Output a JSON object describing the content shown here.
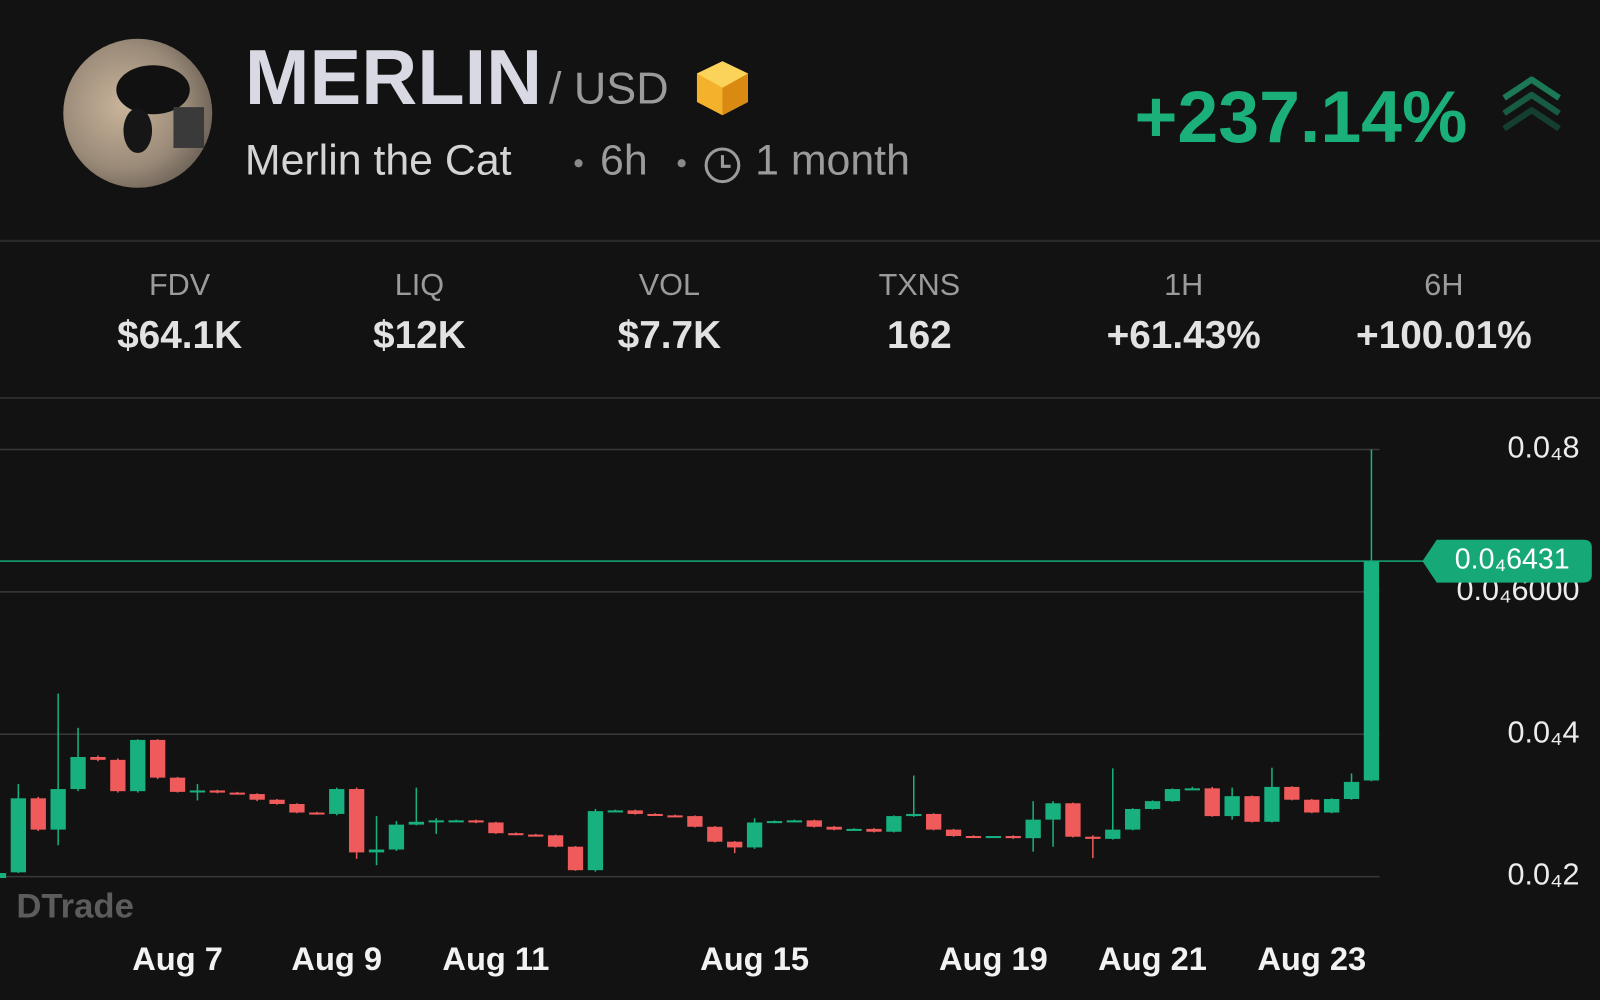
{
  "header": {
    "symbol": "MERLIN",
    "quote": "/ USD",
    "name": "Merlin the Cat",
    "interval": "6h",
    "age": "1 month",
    "change": "+237.14%"
  },
  "stats": [
    {
      "label": "FDV",
      "value": "$64.1K"
    },
    {
      "label": "LIQ",
      "value": "$12K"
    },
    {
      "label": "VOL",
      "value": "$7.7K"
    },
    {
      "label": "TXNS",
      "value": "162"
    },
    {
      "label": "1H",
      "value": "+61.43%"
    },
    {
      "label": "6H",
      "value": "+100.01%"
    }
  ],
  "chart_data": {
    "type": "candlestick",
    "watermark": "DTrade",
    "up_color": "#17b07e",
    "down_color": "#ef5a5a",
    "open": [
      1.98e-05,
      2.06e-05,
      3.1e-05,
      2.66e-05,
      3.23e-05,
      3.68e-05,
      3.64e-05,
      3.2e-05,
      3.92e-05,
      3.39e-05,
      3.19e-05,
      3.21e-05,
      3.18e-05,
      3.16e-05,
      3.08e-05,
      3.02e-05,
      2.9e-05,
      2.88e-05,
      3.23e-05,
      2.34e-05,
      2.38e-05,
      2.73e-05,
      2.77e-05,
      2.79e-05,
      2.79e-05,
      2.76e-05,
      2.61e-05,
      2.59e-05,
      2.58e-05,
      2.42e-05,
      2.09e-05,
      2.92e-05,
      2.93e-05,
      2.88e-05,
      2.86e-05,
      2.85e-05,
      2.7e-05,
      2.49e-05,
      2.41e-05,
      2.76e-05,
      2.78e-05,
      2.79e-05,
      2.7e-05,
      2.66e-05,
      2.67e-05,
      2.63e-05,
      2.85e-05,
      2.88e-05,
      2.66e-05,
      2.57e-05,
      2.56e-05,
      2.57e-05,
      2.54e-05,
      2.8e-05,
      3.03e-05,
      2.56e-05,
      2.53e-05,
      2.66e-05,
      2.95e-05,
      3.06e-05,
      3.23e-05,
      3.24e-05,
      2.85e-05,
      3.13e-05,
      2.77e-05,
      3.26e-05,
      3.08e-05,
      2.9e-05,
      3.09e-05,
      3.35e-05
    ],
    "high": [
      2.05e-05,
      3.3e-05,
      3.12e-05,
      4.57e-05,
      4.09e-05,
      3.7e-05,
      3.66e-05,
      3.93e-05,
      3.93e-05,
      3.4e-05,
      3.3e-05,
      3.22e-05,
      3.19e-05,
      3.17e-05,
      3.09e-05,
      3.03e-05,
      2.91e-05,
      3.25e-05,
      3.25e-05,
      2.85e-05,
      2.78e-05,
      3.25e-05,
      2.82e-05,
      2.8e-05,
      2.8e-05,
      2.77e-05,
      2.62e-05,
      2.6e-05,
      2.59e-05,
      2.43e-05,
      2.95e-05,
      2.94e-05,
      2.94e-05,
      2.89e-05,
      2.87e-05,
      2.86e-05,
      2.71e-05,
      2.5e-05,
      2.82e-05,
      2.79e-05,
      2.8e-05,
      2.8e-05,
      2.71e-05,
      2.68e-05,
      2.68e-05,
      2.86e-05,
      3.42e-05,
      2.89e-05,
      2.67e-05,
      2.58e-05,
      2.57e-05,
      2.58e-05,
      3.06e-05,
      3.06e-05,
      3.04e-05,
      2.58e-05,
      3.52e-05,
      2.96e-05,
      3.07e-05,
      3.24e-05,
      3.26e-05,
      3.26e-05,
      3.25e-05,
      3.14e-05,
      3.53e-05,
      3.27e-05,
      3.09e-05,
      3.1e-05,
      3.45e-05,
      8e-05
    ],
    "low": [
      1.97e-05,
      2.05e-05,
      2.64e-05,
      2.44e-05,
      3.2e-05,
      3.62e-05,
      3.18e-05,
      3.18e-05,
      3.37e-05,
      3.18e-05,
      3.07e-05,
      3.17e-05,
      3.15e-05,
      3.06e-05,
      3.01e-05,
      2.89e-05,
      2.87e-05,
      2.86e-05,
      2.25e-05,
      2.16e-05,
      2.36e-05,
      2.72e-05,
      2.6e-05,
      2.78e-05,
      2.75e-05,
      2.6e-05,
      2.58e-05,
      2.57e-05,
      2.41e-05,
      2.08e-05,
      2.07e-05,
      2.91e-05,
      2.87e-05,
      2.85e-05,
      2.84e-05,
      2.69e-05,
      2.48e-05,
      2.33e-05,
      2.39e-05,
      2.75e-05,
      2.77e-05,
      2.69e-05,
      2.65e-05,
      2.65e-05,
      2.62e-05,
      2.62e-05,
      2.84e-05,
      2.65e-05,
      2.56e-05,
      2.55e-05,
      2.55e-05,
      2.53e-05,
      2.35e-05,
      2.42e-05,
      2.55e-05,
      2.26e-05,
      2.52e-05,
      2.65e-05,
      2.94e-05,
      3.05e-05,
      3.22e-05,
      2.84e-05,
      2.8e-05,
      2.76e-05,
      2.76e-05,
      3.07e-05,
      2.89e-05,
      2.89e-05,
      3.08e-05,
      3.34e-05
    ],
    "close": [
      2.05e-05,
      3.1e-05,
      2.66e-05,
      3.23e-05,
      3.68e-05,
      3.64e-05,
      3.2e-05,
      3.92e-05,
      3.39e-05,
      3.19e-05,
      3.21e-05,
      3.18e-05,
      3.16e-05,
      3.08e-05,
      3.02e-05,
      2.9e-05,
      2.88e-05,
      3.23e-05,
      2.34e-05,
      2.38e-05,
      2.73e-05,
      2.77e-05,
      2.79e-05,
      2.79e-05,
      2.76e-05,
      2.61e-05,
      2.59e-05,
      2.58e-05,
      2.42e-05,
      2.09e-05,
      2.92e-05,
      2.93e-05,
      2.88e-05,
      2.86e-05,
      2.85e-05,
      2.7e-05,
      2.49e-05,
      2.41e-05,
      2.76e-05,
      2.78e-05,
      2.79e-05,
      2.7e-05,
      2.66e-05,
      2.67e-05,
      2.63e-05,
      2.85e-05,
      2.88e-05,
      2.66e-05,
      2.57e-05,
      2.56e-05,
      2.57e-05,
      2.54e-05,
      2.8e-05,
      3.03e-05,
      2.56e-05,
      2.53e-05,
      2.66e-05,
      2.95e-05,
      3.06e-05,
      3.23e-05,
      3.24e-05,
      2.85e-05,
      3.13e-05,
      2.77e-05,
      3.26e-05,
      3.08e-05,
      2.9e-05,
      3.09e-05,
      3.33e-05,
      6.431e-05
    ],
    "ylim": [
      1.7e-05,
      8.58e-05
    ],
    "yticks": [
      {
        "value": 2e-05,
        "label": "0.0₄2"
      },
      {
        "value": 4e-05,
        "label": "0.0₄4"
      },
      {
        "value": 6e-05,
        "label": "0.0₄6000"
      },
      {
        "value": 8e-05,
        "label": "0.0₄8"
      }
    ],
    "xticks": [
      {
        "value": 9,
        "label": "Aug 7"
      },
      {
        "value": 17,
        "label": "Aug 9"
      },
      {
        "value": 25,
        "label": "Aug 11"
      },
      {
        "value": 38,
        "label": "Aug 15"
      },
      {
        "value": 50,
        "label": "Aug 19"
      },
      {
        "value": 58,
        "label": "Aug 21"
      },
      {
        "value": 66,
        "label": "Aug 23"
      }
    ],
    "last_price": {
      "value": 6.431e-05,
      "label": "0.0₄6431"
    },
    "grid": true
  }
}
